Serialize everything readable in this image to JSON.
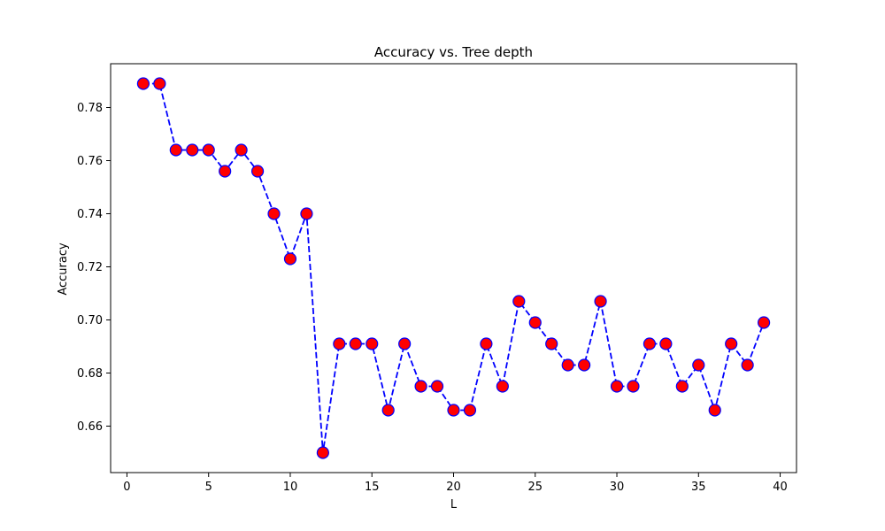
{
  "chart_data": {
    "type": "line",
    "title": "Accuracy vs. Tree depth",
    "xlabel": "L",
    "ylabel": "Accuracy",
    "xlim": [
      -1,
      41
    ],
    "ylim": [
      0.6425,
      0.7965
    ],
    "xticks": [
      0,
      5,
      10,
      15,
      20,
      25,
      30,
      35,
      40
    ],
    "xtick_labels": [
      "0",
      "5",
      "10",
      "15",
      "20",
      "25",
      "30",
      "35",
      "40"
    ],
    "yticks": [
      0.66,
      0.68,
      0.7,
      0.72,
      0.74,
      0.76,
      0.78
    ],
    "ytick_labels": [
      "0.66",
      "0.68",
      "0.70",
      "0.72",
      "0.74",
      "0.76",
      "0.78"
    ],
    "grid": false,
    "series": [
      {
        "line_color": "#0000ff",
        "line_style": "dashed",
        "marker": "circle",
        "marker_face_color": "#ff0000",
        "marker_edge_color": "#0000ff",
        "x": [
          1,
          2,
          3,
          4,
          5,
          6,
          7,
          8,
          9,
          10,
          11,
          12,
          13,
          14,
          15,
          16,
          17,
          18,
          19,
          20,
          21,
          22,
          23,
          24,
          25,
          26,
          27,
          28,
          29,
          30,
          31,
          32,
          33,
          34,
          35,
          36,
          37,
          38,
          39
        ],
        "y": [
          0.789,
          0.789,
          0.764,
          0.764,
          0.764,
          0.756,
          0.764,
          0.756,
          0.74,
          0.723,
          0.74,
          0.65,
          0.691,
          0.691,
          0.691,
          0.666,
          0.691,
          0.675,
          0.675,
          0.666,
          0.666,
          0.691,
          0.675,
          0.707,
          0.699,
          0.691,
          0.683,
          0.683,
          0.707,
          0.675,
          0.675,
          0.691,
          0.691,
          0.675,
          0.683,
          0.666,
          0.691,
          0.683,
          0.699
        ]
      }
    ]
  }
}
